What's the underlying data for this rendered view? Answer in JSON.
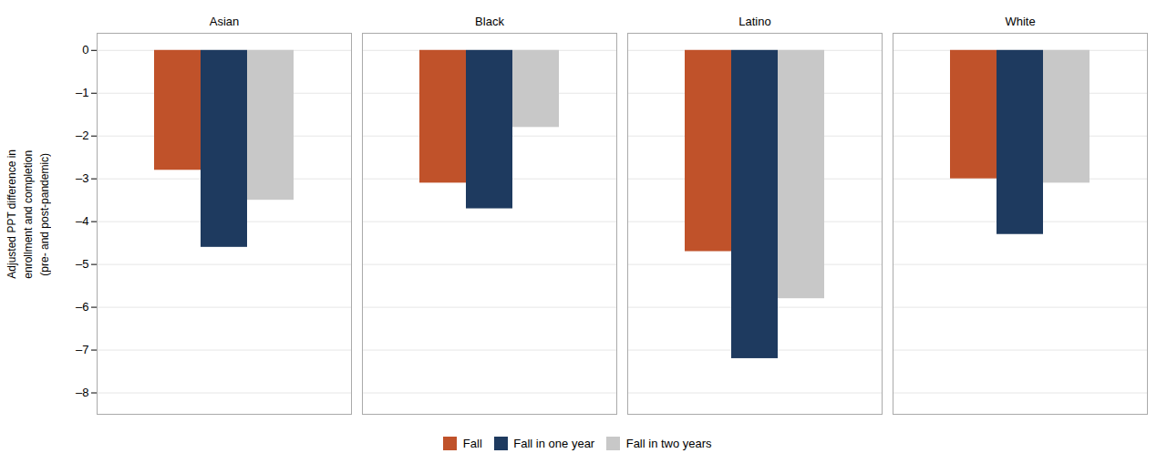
{
  "chart_data": {
    "type": "bar",
    "categories": [
      "Asian",
      "Black",
      "Latino",
      "White"
    ],
    "series": [
      {
        "name": "Fall",
        "color": "#C0522A",
        "values": [
          -2.8,
          -3.1,
          -4.7,
          -3.0
        ]
      },
      {
        "name": "Fall in one year",
        "color": "#1E3A5F",
        "values": [
          -4.6,
          -3.7,
          -7.2,
          -4.3
        ]
      },
      {
        "name": "Fall in two years",
        "color": "#C8C8C8",
        "values": [
          -3.5,
          -1.8,
          -5.8,
          -3.1
        ]
      }
    ],
    "ylabel": "Adjusted PPT difference in\nenrollment and completion\n(pre- and post-pandemic)",
    "ylim": [
      -8.5,
      0.4
    ],
    "yticks": [
      0,
      {
        "value": -1,
        "label": "–1"
      },
      {
        "value": -2,
        "label": "–2"
      },
      {
        "value": -3,
        "label": "–3"
      },
      {
        "value": -4,
        "label": "–4"
      },
      {
        "value": -5,
        "label": "–5"
      },
      {
        "value": -6,
        "label": "–6"
      },
      {
        "value": -7,
        "label": "–7"
      },
      {
        "value": -8,
        "label": "–8"
      }
    ],
    "grid": true,
    "legend": "bottom"
  }
}
